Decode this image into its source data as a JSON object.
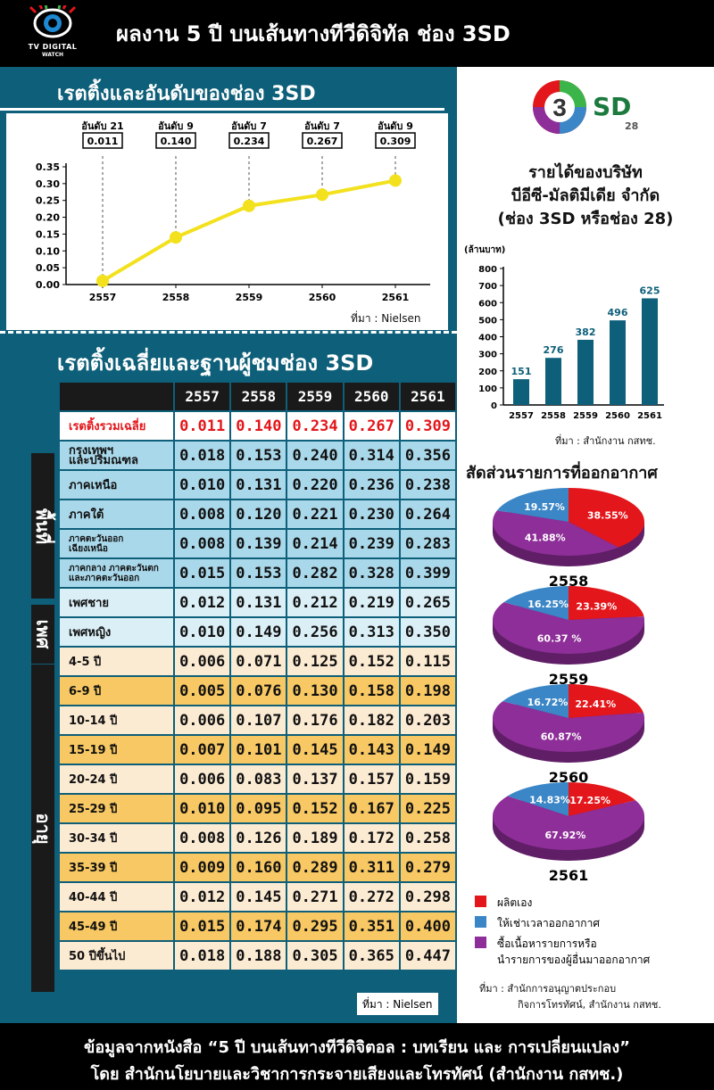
{
  "header": {
    "logo_line1": "TV DIGITAL",
    "logo_line2": "WATCH",
    "title": "ผลงาน 5 ปี บนเส้นทางทีวีดิจิทัล ช่อง 3SD"
  },
  "colors": {
    "teal": "#0e5f79",
    "yellow": "#f2e11c",
    "red": "#e3161b",
    "blue": "#3b86c6",
    "purple": "#8e2e98"
  },
  "rating_section": {
    "title": "เรตติ้งและอันดับของช่อง 3SD",
    "source": "ที่มา : Nielsen"
  },
  "chart_data": [
    {
      "type": "line",
      "title": "เรตติ้งและอันดับของช่อง 3SD",
      "x": [
        "2557",
        "2558",
        "2559",
        "2560",
        "2561"
      ],
      "values": [
        0.011,
        0.14,
        0.234,
        0.267,
        0.309
      ],
      "rank_labels": [
        "อันดับ 21",
        "อันดับ 9",
        "อันดับ 7",
        "อันดับ 7",
        "อันดับ 9"
      ],
      "value_labels": [
        "0.011",
        "0.140",
        "0.234",
        "0.267",
        "0.309"
      ],
      "yticks": [
        "0.00",
        "0.05",
        "0.10",
        "0.15",
        "0.20",
        "0.25",
        "0.30",
        "0.35"
      ],
      "ylim": [
        0,
        0.35
      ],
      "color": "#f2e11c"
    },
    {
      "type": "bar",
      "title": "รายได้ของบริษัท บีอีซี-มัลติมีเดีย จำกัด (ช่อง 3SD หรือช่อง 28)",
      "unit": "(ล้านบาท)",
      "categories": [
        "2557",
        "2558",
        "2559",
        "2560",
        "2561"
      ],
      "values": [
        151,
        276,
        382,
        496,
        625
      ],
      "yticks": [
        "0",
        "100",
        "200",
        "300",
        "400",
        "500",
        "600",
        "700",
        "800"
      ],
      "ylim": [
        0,
        800
      ],
      "color": "#0e5f79"
    },
    {
      "type": "pie",
      "title": "สัดส่วนรายการที่ออกอากาศ",
      "charts": [
        {
          "year": "2558",
          "values": [
            38.55,
            41.88,
            19.57
          ],
          "labels": [
            "38.55%",
            "41.88%",
            "19.57%"
          ]
        },
        {
          "year": "2559",
          "values": [
            23.39,
            60.37,
            16.25
          ],
          "labels": [
            "23.39%",
            "60.37 %",
            "16.25%"
          ]
        },
        {
          "year": "2560",
          "values": [
            22.41,
            60.87,
            16.72
          ],
          "labels": [
            "22.41%",
            "60.87%",
            "16.72%"
          ]
        },
        {
          "year": "2561",
          "values": [
            17.25,
            67.92,
            14.83
          ],
          "labels": [
            "17.25%",
            "67.92%",
            "14.83%"
          ]
        }
      ],
      "legend": [
        "ผลิตเอง",
        "ให้เช่าเวลาออกอากาศ",
        "ซื้อเนื้อหารายการหรือ",
        "นำรายการของผู้อื่นมาออกอากาศ"
      ]
    }
  ],
  "revenue": {
    "logo_sd": "SD",
    "logo_num": "28",
    "title1": "รายได้ของบริษัท",
    "title2": "บีอีซี-มัลติมีเดีย จำกัด",
    "title3": "(ช่อง 3SD หรือช่อง 28)",
    "unit": "(ล้านบาท)",
    "source": "ที่มา : สำนักงาน กสทช."
  },
  "pie_section": {
    "title": "สัดส่วนรายการที่ออกอากาศ",
    "legend_red": "ผลิตเอง",
    "legend_blue": "ให้เช่าเวลาออกอากาศ",
    "legend_purple1": "ซื้อเนื้อหารายการหรือ",
    "legend_purple2": "นำรายการของผู้อื่นมาออกอากาศ",
    "source1": "ที่มา :  สำนักการอนุญาตประกอบ",
    "source2": "กิจการโทรทัศน์, สำนักงาน กสทช."
  },
  "table": {
    "title": "เรตติ้งเฉลี่ยและฐานผู้ชมช่อง 3SD",
    "years": [
      "2557",
      "2558",
      "2559",
      "2560",
      "2561"
    ],
    "avg": {
      "label": "เรตติ้งรวมเฉลี่ย",
      "values": [
        "0.011",
        "0.140",
        "0.234",
        "0.267",
        "0.309"
      ]
    },
    "region_label": "พื้นที่",
    "gender_label": "เพศ",
    "age_label": "อายุ",
    "regions": [
      {
        "label1": "กรุงเทพฯ",
        "label2": "และปริมณฑล",
        "values": [
          "0.018",
          "0.153",
          "0.240",
          "0.314",
          "0.356"
        ]
      },
      {
        "label1": "ภาคเหนือ",
        "label2": "",
        "values": [
          "0.010",
          "0.131",
          "0.220",
          "0.236",
          "0.238"
        ]
      },
      {
        "label1": "ภาคใต้",
        "label2": "",
        "values": [
          "0.008",
          "0.120",
          "0.221",
          "0.230",
          "0.264"
        ]
      },
      {
        "label1": "ภาคตะวันออก",
        "label2": "เฉียงเหนือ",
        "values": [
          "0.008",
          "0.139",
          "0.214",
          "0.239",
          "0.283"
        ]
      },
      {
        "label1": "ภาคกลาง ภาคตะวันตก",
        "label2": "และภาคตะวันออก",
        "values": [
          "0.015",
          "0.153",
          "0.282",
          "0.328",
          "0.399"
        ]
      }
    ],
    "genders": [
      {
        "label": "เพศชาย",
        "values": [
          "0.012",
          "0.131",
          "0.212",
          "0.219",
          "0.265"
        ]
      },
      {
        "label": "เพศหญิง",
        "values": [
          "0.010",
          "0.149",
          "0.256",
          "0.313",
          "0.350"
        ]
      }
    ],
    "ages": [
      {
        "label": "4-5 ปี",
        "values": [
          "0.006",
          "0.071",
          "0.125",
          "0.152",
          "0.115"
        ]
      },
      {
        "label": "6-9 ปี",
        "values": [
          "0.005",
          "0.076",
          "0.130",
          "0.158",
          "0.198"
        ]
      },
      {
        "label": "10-14 ปี",
        "values": [
          "0.006",
          "0.107",
          "0.176",
          "0.182",
          "0.203"
        ]
      },
      {
        "label": "15-19 ปี",
        "values": [
          "0.007",
          "0.101",
          "0.145",
          "0.143",
          "0.149"
        ]
      },
      {
        "label": "20-24 ปี",
        "values": [
          "0.006",
          "0.083",
          "0.137",
          "0.157",
          "0.159"
        ]
      },
      {
        "label": "25-29 ปี",
        "values": [
          "0.010",
          "0.095",
          "0.152",
          "0.167",
          "0.225"
        ]
      },
      {
        "label": "30-34 ปี",
        "values": [
          "0.008",
          "0.126",
          "0.189",
          "0.172",
          "0.258"
        ]
      },
      {
        "label": "35-39 ปี",
        "values": [
          "0.009",
          "0.160",
          "0.289",
          "0.311",
          "0.279"
        ]
      },
      {
        "label": "40-44 ปี",
        "values": [
          "0.012",
          "0.145",
          "0.271",
          "0.272",
          "0.298"
        ]
      },
      {
        "label": "45-49 ปี",
        "values": [
          "0.015",
          "0.174",
          "0.295",
          "0.351",
          "0.400"
        ]
      },
      {
        "label": "50 ปีขึ้นไป",
        "values": [
          "0.018",
          "0.188",
          "0.305",
          "0.365",
          "0.447"
        ]
      }
    ],
    "source": "ที่มา : Nielsen"
  },
  "footer": {
    "line1": "ข้อมูลจากหนังสือ “5 ปี บนเส้นทางทีวีดิจิตอล : บทเรียน และ การเปลี่ยนแปลง”",
    "line2": "โดย สำนักนโยบายและวิชาการกระจายเสียงและโทรทัศน์ (สำนักงาน กสทช.)"
  }
}
